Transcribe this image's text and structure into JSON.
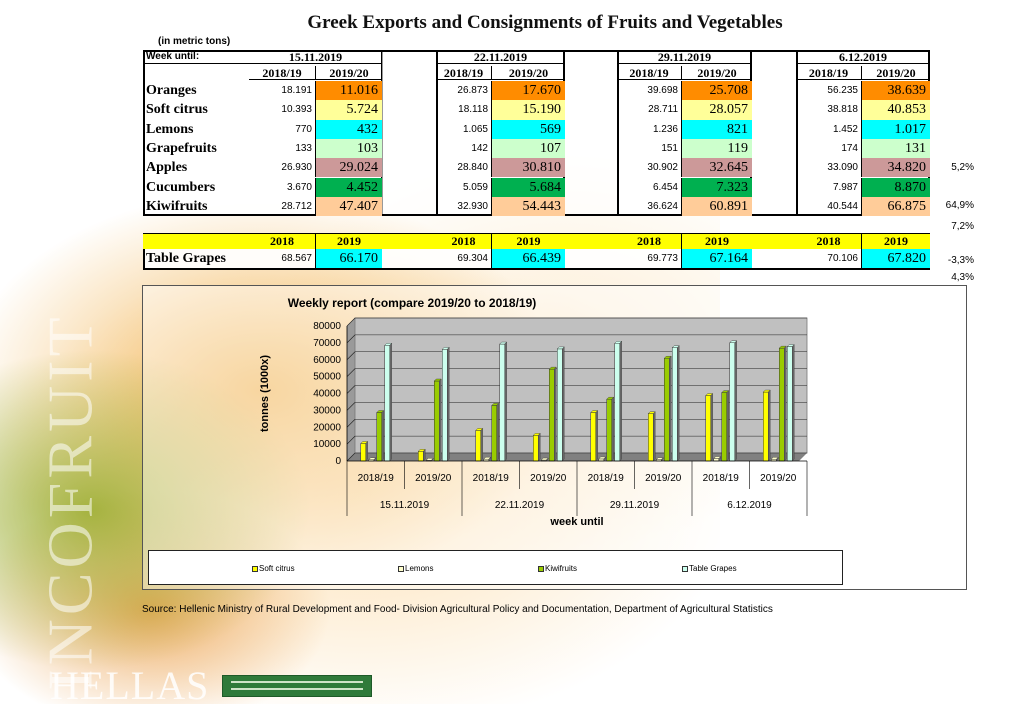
{
  "title": "Greek Exports and Consignments of Fruits and Vegetables",
  "unit_note": "(in metric tons)",
  "week_label": "Week until:",
  "weeks": [
    "15.11.2019",
    "22.11.2019",
    "29.11.2019",
    "6.12.2019"
  ],
  "season_headers": [
    "2018/19",
    "2019/20"
  ],
  "grape_headers": [
    "2018",
    "2019"
  ],
  "rows": [
    {
      "label": "Oranges",
      "color": "#ff8c00",
      "values": [
        [
          "18.191",
          "11.016"
        ],
        [
          "26.873",
          "17.670"
        ],
        [
          "39.698",
          "25.708"
        ],
        [
          "56.235",
          "38.639"
        ]
      ]
    },
    {
      "label": "Soft citrus",
      "color": "#ffff99",
      "values": [
        [
          "10.393",
          "5.724"
        ],
        [
          "18.118",
          "15.190"
        ],
        [
          "28.711",
          "28.057"
        ],
        [
          "38.818",
          "40.853"
        ]
      ]
    },
    {
      "label": "Lemons",
      "color": "#00ffff",
      "values": [
        [
          "770",
          "432"
        ],
        [
          "1.065",
          "569"
        ],
        [
          "1.236",
          "821"
        ],
        [
          "1.452",
          "1.017"
        ]
      ]
    },
    {
      "label": "Grapefruits",
      "color": "#ccffcc",
      "values": [
        [
          "133",
          "103"
        ],
        [
          "142",
          "107"
        ],
        [
          "151",
          "119"
        ],
        [
          "174",
          "131"
        ]
      ]
    },
    {
      "label": "Apples",
      "color": "#cc9999",
      "values": [
        [
          "26.930",
          "29.024"
        ],
        [
          "28.840",
          "30.810"
        ],
        [
          "30.902",
          "32.645"
        ],
        [
          "33.090",
          "34.820"
        ]
      ]
    },
    {
      "label": "Cucumbers",
      "color": "#00b050",
      "values": [
        [
          "3.670",
          "4.452"
        ],
        [
          "5.059",
          "5.684"
        ],
        [
          "6.454",
          "7.323"
        ],
        [
          "7.987",
          "8.870"
        ]
      ]
    },
    {
      "label": "Kiwifruits",
      "color": "#ffcc99",
      "values": [
        [
          "28.712",
          "47.407"
        ],
        [
          "32.930",
          "54.443"
        ],
        [
          "36.624",
          "60.891"
        ],
        [
          "40.544",
          "66.875"
        ]
      ]
    }
  ],
  "grapes_row": {
    "label": "Table Grapes",
    "color": "#00ffff",
    "values": [
      [
        "68.567",
        "66.170"
      ],
      [
        "69.304",
        "66.439"
      ],
      [
        "69.773",
        "67.164"
      ],
      [
        "70.106",
        "67.820"
      ]
    ]
  },
  "side_percents": [
    "5,2%",
    "64,9%",
    "7,2%",
    "-3,3%",
    "4,3%"
  ],
  "source": "Source: Hellenic Ministry of Rural Development and Food- Division Agricultural Policy and Documentation, Department of Agricultural Statistics",
  "background_text": {
    "watermark": "INCOFRUIT",
    "brand": "HELLAS"
  },
  "chart_data": {
    "type": "bar",
    "title": "Weekly report (compare 2019/20 to 2018/19)",
    "xlabel": "week until",
    "ylabel": "tonnes (1000x)",
    "ylim": [
      0,
      80000
    ],
    "yticks": [
      "0",
      "10000",
      "20000",
      "30000",
      "40000",
      "50000",
      "60000",
      "70000",
      "80000"
    ],
    "grid": true,
    "legend_position": "bottom",
    "group_labels": [
      "15.11.2019",
      "22.11.2019",
      "29.11.2019",
      "6.12.2019"
    ],
    "categories": [
      "2018/19",
      "2019/20",
      "2018/19",
      "2019/20",
      "2018/19",
      "2019/20",
      "2018/19",
      "2019/20"
    ],
    "series": [
      {
        "name": "Soft citrus",
        "color": "#ffff00",
        "values": [
          10393,
          5724,
          18118,
          15190,
          28711,
          28057,
          38818,
          40853
        ]
      },
      {
        "name": "Lemons",
        "color": "#ffffcc",
        "values": [
          770,
          432,
          1065,
          569,
          1236,
          821,
          1452,
          1017
        ]
      },
      {
        "name": "Kiwifruits",
        "color": "#99cc00",
        "values": [
          28712,
          47407,
          32930,
          54443,
          36624,
          60891,
          40544,
          66875
        ]
      },
      {
        "name": "Table Grapes",
        "color": "#ccffee",
        "values": [
          68567,
          66170,
          69304,
          66439,
          69773,
          67164,
          70106,
          67820
        ]
      }
    ]
  }
}
